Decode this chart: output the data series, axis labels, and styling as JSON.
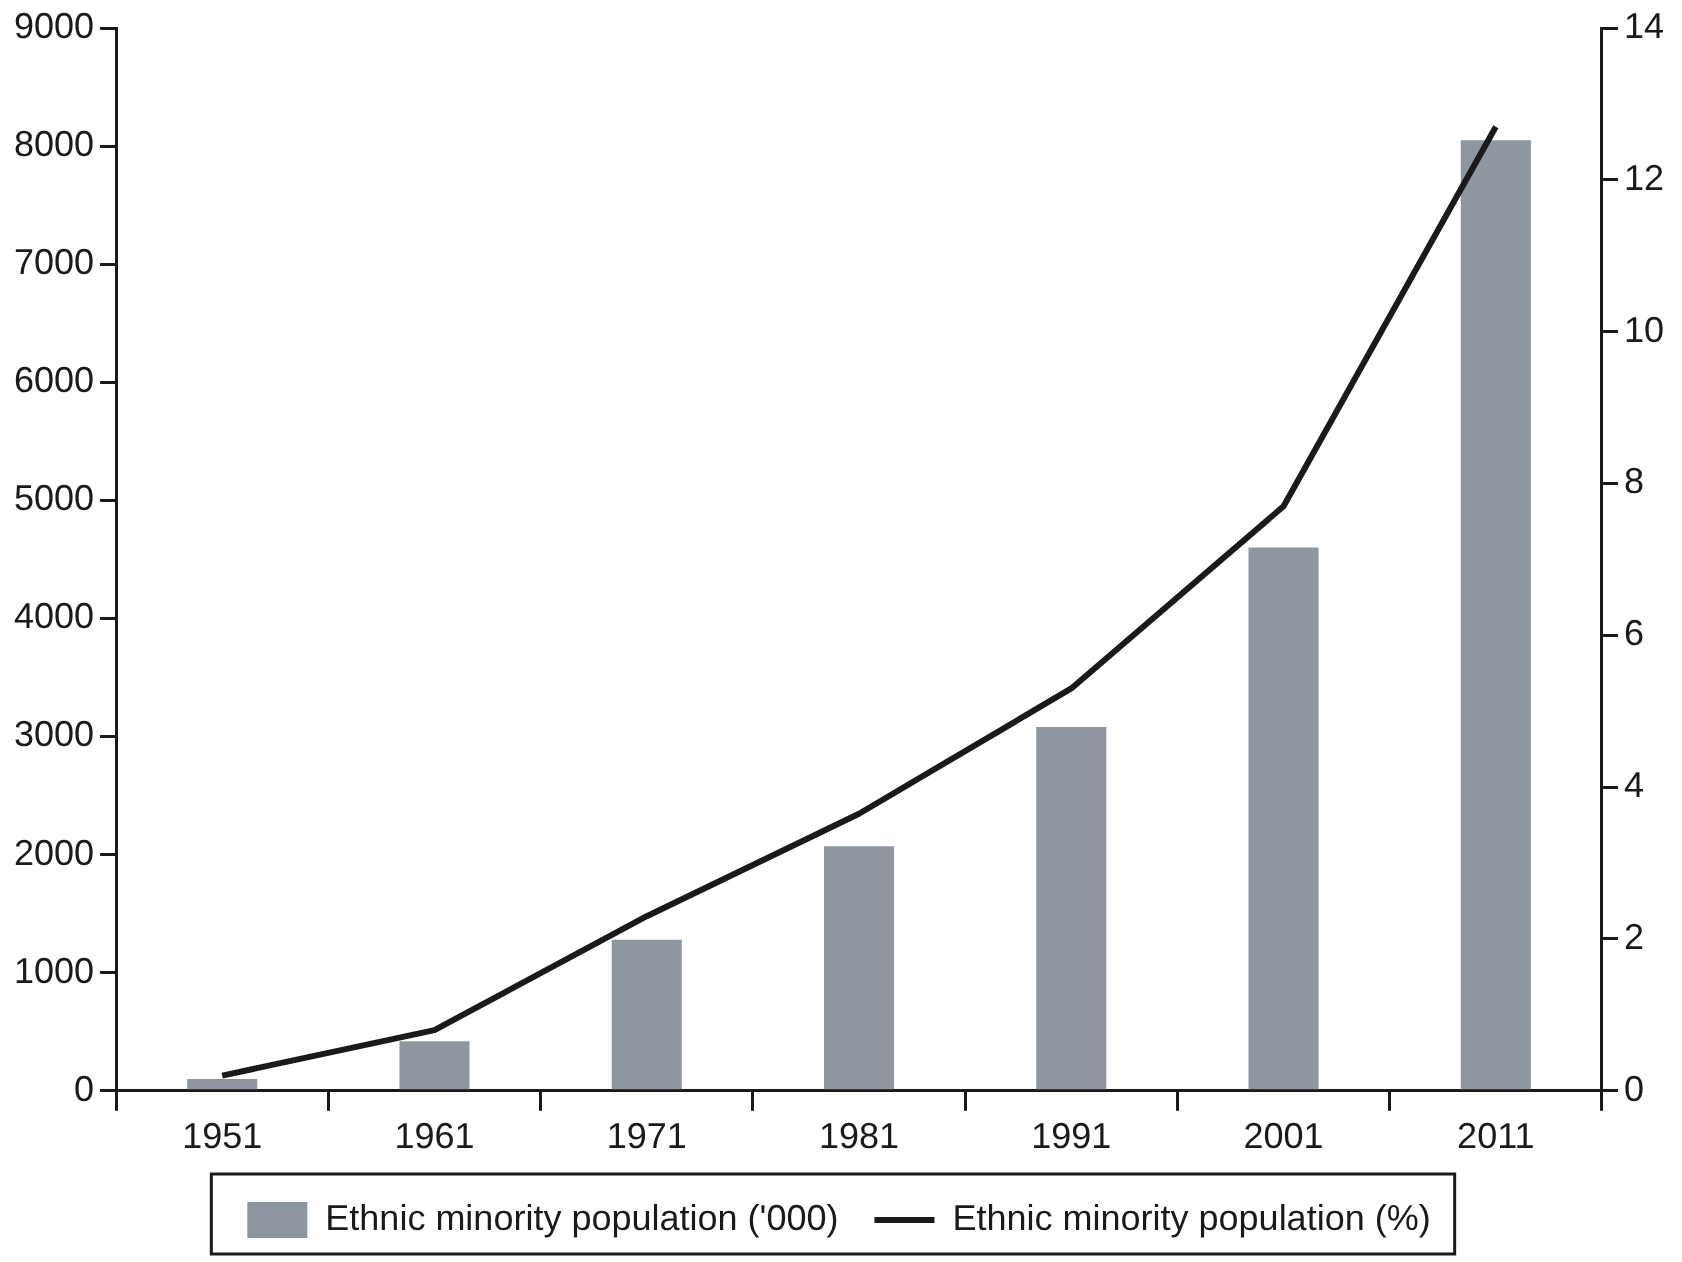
{
  "chart_data": {
    "type": "bar",
    "categories": [
      "1951",
      "1961",
      "1971",
      "1981",
      "1991",
      "2001",
      "2011"
    ],
    "series": [
      {
        "name": "Ethnic minority population ('000)",
        "color": "#8e969f",
        "values": [
          100,
          420,
          1280,
          2070,
          3080,
          4600,
          8050
        ]
      },
      {
        "name": "Ethnic minority population (%)",
        "type": "line",
        "axis": "y2",
        "color": "#1a1a1a",
        "values": [
          0.2,
          0.8,
          2.3,
          3.65,
          5.3,
          7.7,
          12.7
        ]
      }
    ],
    "ylim": [
      0,
      9000
    ],
    "yticks": [
      0,
      1000,
      2000,
      3000,
      4000,
      5000,
      6000,
      7000,
      8000,
      9000
    ],
    "y2lim": [
      0,
      14
    ],
    "y2ticks": [
      0,
      2,
      4,
      6,
      8,
      10,
      12,
      14
    ],
    "grid": false,
    "legend": "bottom",
    "marker": "none",
    "line_style": "solid"
  }
}
